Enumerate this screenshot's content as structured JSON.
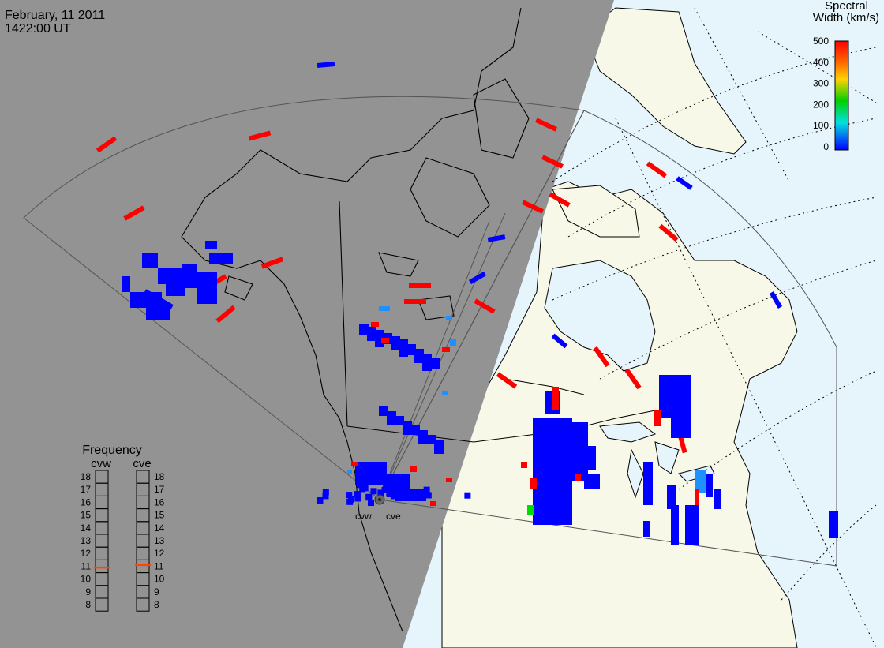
{
  "header": {
    "date": "February, 11 2011",
    "time": "1422:00 UT"
  },
  "colorbar": {
    "title_line1": "Spectral",
    "title_line2": "Width (km/s)",
    "ticks": [
      "500",
      "400",
      "300",
      "200",
      "100",
      "0"
    ],
    "colors": [
      "#ff0000",
      "#ffa500",
      "#ffff00",
      "#00cc00",
      "#00ffff",
      "#0000ff"
    ]
  },
  "frequency": {
    "title": "Frequency",
    "left_label": "cvw",
    "right_label": "cve",
    "ticks": [
      "18",
      "17",
      "16",
      "15",
      "14",
      "13",
      "12",
      "11",
      "10",
      "9",
      "8"
    ],
    "cvw_value": 10.9,
    "cve_value": 11.1,
    "marker_color": "#ff4400"
  },
  "radars": {
    "west_label": "cvw",
    "east_label": "cve"
  },
  "colors": {
    "night": "#939393",
    "land_day": "#f8f8e8",
    "ocean_day": "#e6f4fc",
    "scatter_blue": "#0000ff",
    "scatter_red": "#ff0000",
    "scatter_light_blue": "#1e90ff",
    "scatter_green": "#00dd00"
  }
}
